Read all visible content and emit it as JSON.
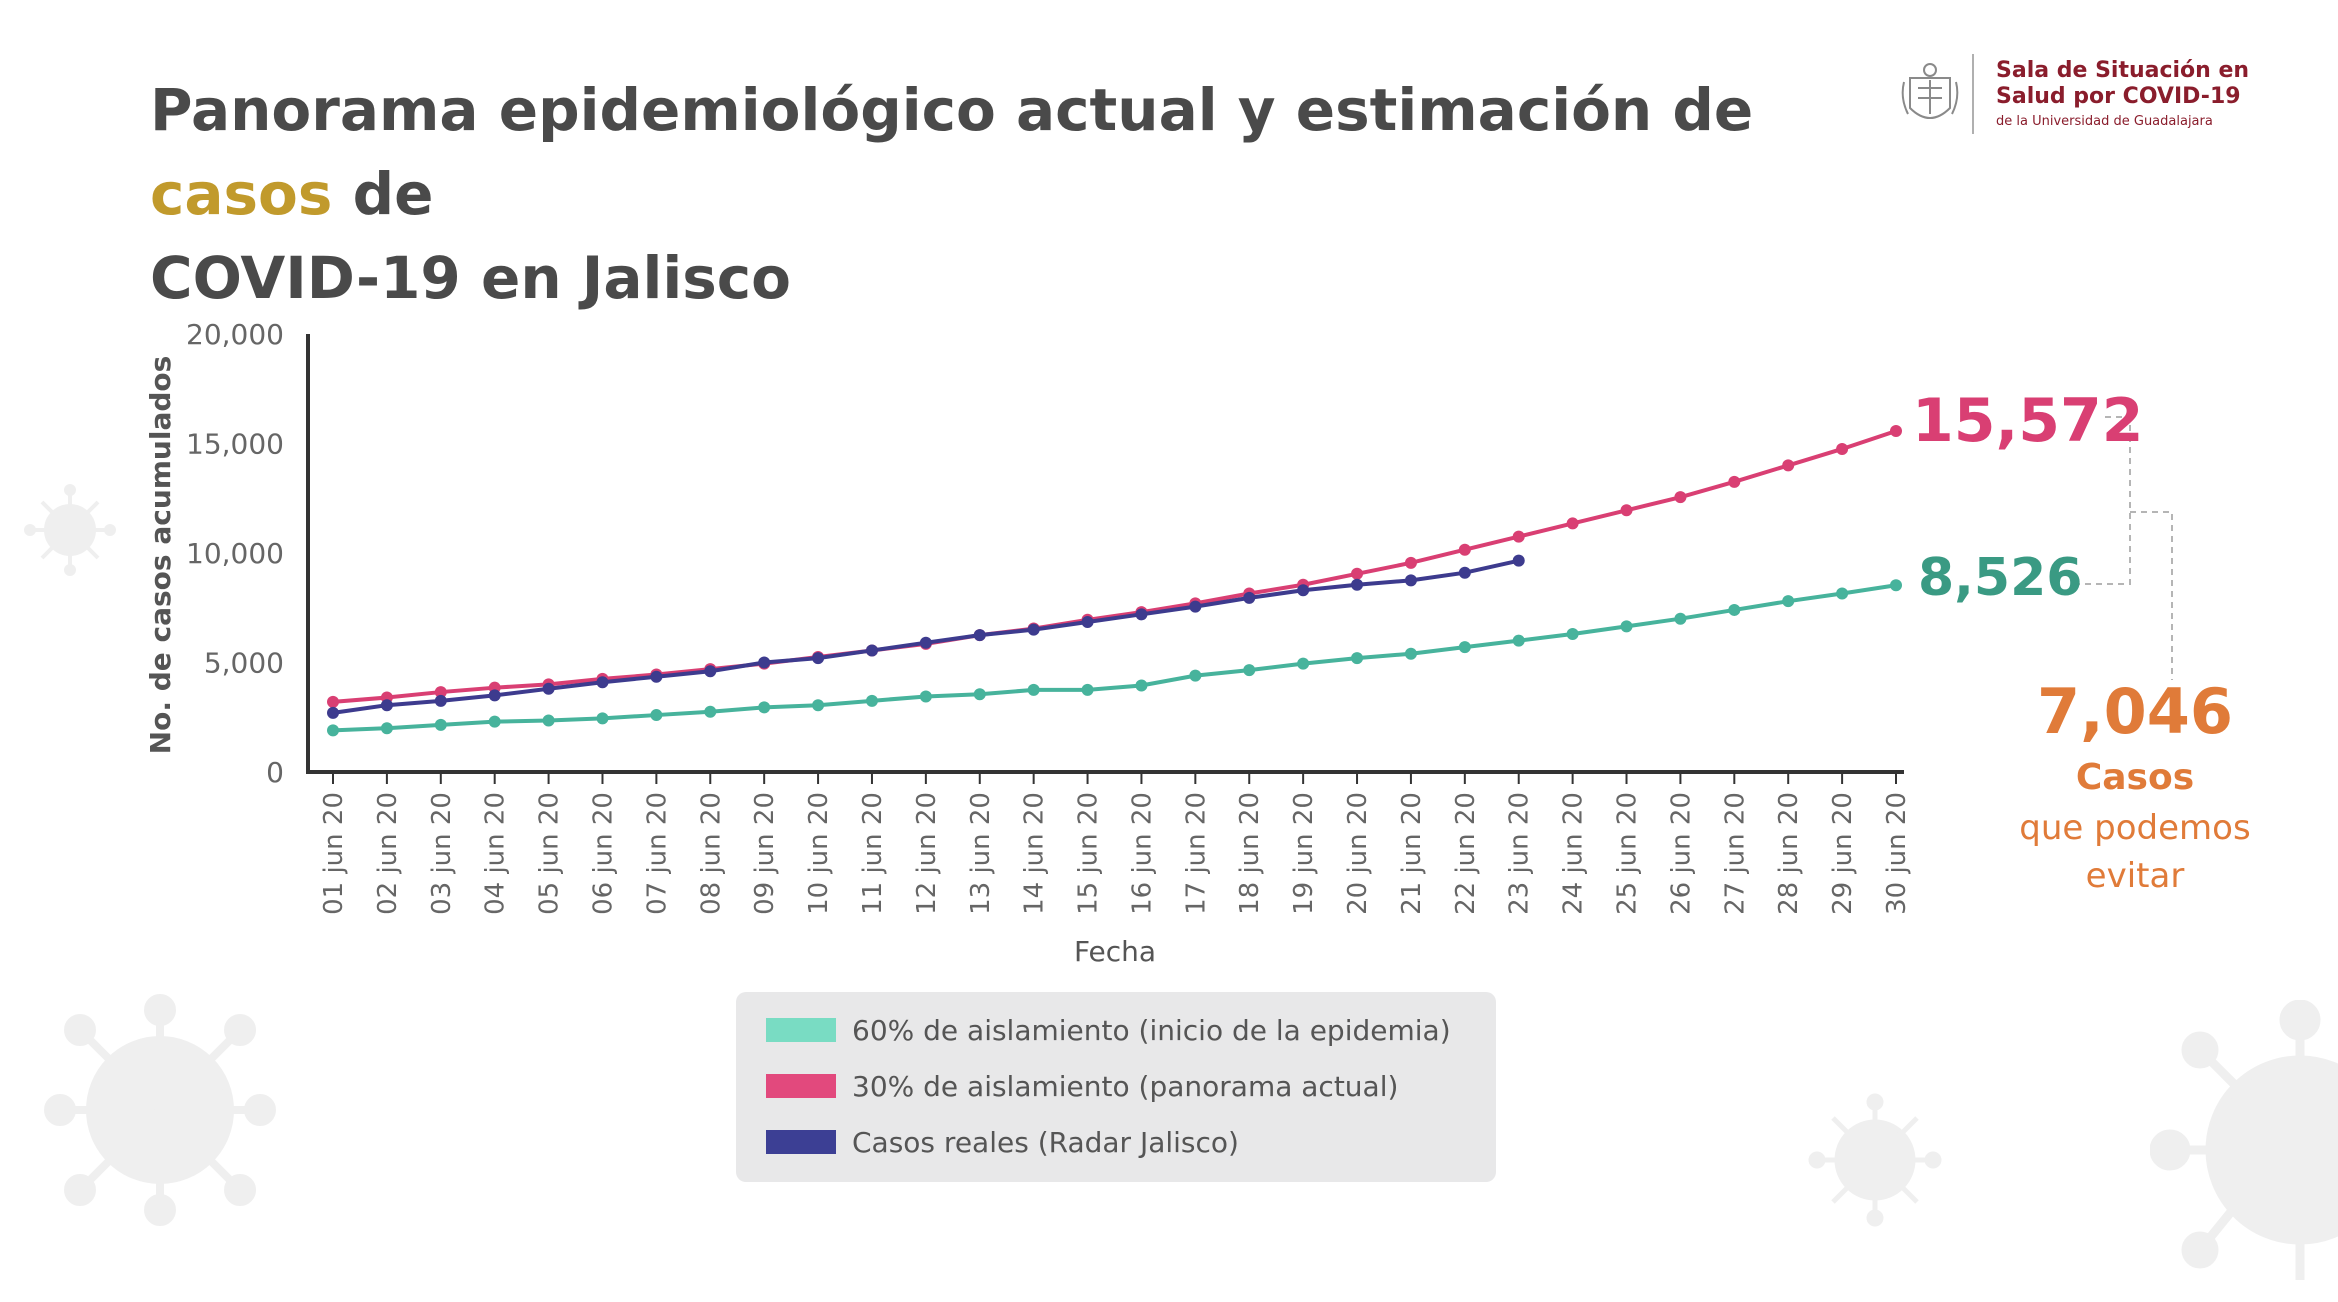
{
  "header": {
    "title_line1_part1": "Panorama epidemiológico actual y estimación de ",
    "title_line1_highlight": "casos",
    "title_line1_part2": " de",
    "title_line2": "COVID-19 en Jalisco",
    "highlight_color": "#c19a2c"
  },
  "logo": {
    "line1": "Sala de Situación en",
    "line2": "Salud por COVID-19",
    "line3": "de la Universidad de Guadalajara",
    "color": "#8a1d2c"
  },
  "chart_data": {
    "type": "line",
    "xlabel": "Fecha",
    "ylabel": "No. de casos acumulados",
    "ylim": [
      0,
      20000
    ],
    "yticks": [
      0,
      5000,
      10000,
      15000,
      20000
    ],
    "ytick_labels": [
      "0",
      "5,000",
      "10,000",
      "15,000",
      "20,000"
    ],
    "categories": [
      "01 jun 20",
      "02 jun 20",
      "03 jun 20",
      "04 jun 20",
      "05 jun 20",
      "06 jun 20",
      "07 jun 20",
      "08 jun 20",
      "09 jun 20",
      "10 jun 20",
      "11 jun 20",
      "12 jun 20",
      "13 jun 20",
      "14 jun 20",
      "15 jun 20",
      "16 jun 20",
      "17 jun 20",
      "18 jun 20",
      "19 jun 20",
      "20 jun 20",
      "21 jun 20",
      "22 jun 20",
      "23 jun 20",
      "24 jun 20",
      "25 jun 20",
      "26 jun 20",
      "27 jun 20",
      "28 jun 20",
      "29 jun 20",
      "30 jun 20"
    ],
    "series": [
      {
        "name": "60% de aislamiento (inicio de la epidemia)",
        "color": "#47b39c",
        "legend_color": "#79dcc3",
        "values": [
          1900,
          2000,
          2150,
          2300,
          2350,
          2450,
          2600,
          2750,
          2950,
          3050,
          3250,
          3450,
          3550,
          3750,
          3750,
          3950,
          4400,
          4650,
          4950,
          5200,
          5400,
          5700,
          6000,
          6300,
          6650,
          7000,
          7400,
          7800,
          8150,
          8526
        ]
      },
      {
        "name": "30% de aislamiento (panorama actual)",
        "color": "#d93f73",
        "legend_color": "#e2497d",
        "values": [
          3200,
          3400,
          3650,
          3850,
          4000,
          4250,
          4450,
          4700,
          4950,
          5250,
          5550,
          5850,
          6250,
          6550,
          6950,
          7300,
          7700,
          8150,
          8550,
          9050,
          9550,
          10150,
          10750,
          11350,
          11950,
          12550,
          13250,
          14000,
          14750,
          15572
        ]
      },
      {
        "name": "Casos reales (Radar Jalisco)",
        "color": "#3d3b8e",
        "legend_color": "#3c3f94",
        "values": [
          2700,
          3050,
          3250,
          3500,
          3800,
          4100,
          4350,
          4600,
          5000,
          5200,
          5550,
          5900,
          6250,
          6500,
          6850,
          7200,
          7550,
          7950,
          8300,
          8550,
          8750,
          9100,
          9650,
          null,
          null,
          null,
          null,
          null,
          null,
          null
        ]
      }
    ],
    "annotations": {
      "pink_end_label": "15,572",
      "green_end_label": "8,526",
      "difference_value": "7,046",
      "difference_line1": "Casos",
      "difference_line2": "que podemos",
      "difference_line3": "evitar"
    }
  },
  "legend": [
    {
      "label": "60% de aislamiento (inicio de la epidemia)",
      "color": "#79dcc3"
    },
    {
      "label": "30% de aislamiento (panorama actual)",
      "color": "#e2497d"
    },
    {
      "label": "Casos reales (Radar Jalisco)",
      "color": "#3c3f94"
    }
  ],
  "colors": {
    "title": "#4a4a4a",
    "axis": "#333333",
    "tick_text": "#666666",
    "pink_label": "#d93f73",
    "green_label": "#3a9a83",
    "difference": "#e07b39",
    "virus_decor": "#efefef"
  }
}
